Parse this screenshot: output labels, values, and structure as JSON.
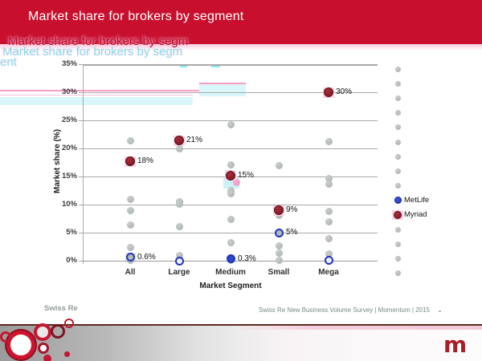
{
  "slide": {
    "title": "Market share for brokers by segment",
    "ghost_title_line": "Market share for brokers by segm",
    "ghost_title_wrap": "ent"
  },
  "footer": {
    "left": "Swiss Re",
    "right": "Swiss Re New Business Volume Survey |  Momentum |  2015",
    "logo": "m"
  },
  "colors": {
    "header_red": "#c8102e",
    "metlife_blue": "#2134bd",
    "myriad_red": "#8a1c29",
    "gray_dot": "#b0b6b5",
    "artifact_pink": "#fa9cc5",
    "artifact_cyan": "#d9f6fa",
    "momentum_red": "#a81e2c",
    "gridline_gray": "#a9a9a9"
  },
  "chart_data": {
    "type": "scatter",
    "title": "",
    "xlabel": "Market Segment",
    "ylabel": "Market share (%)",
    "categories": [
      "All",
      "Large",
      "Medium",
      "Small",
      "Mega"
    ],
    "y_ticks": [
      "0%",
      "5%",
      "10%",
      "15%",
      "20%",
      "25%",
      "30%",
      "35%"
    ],
    "ylim": [
      0,
      35
    ],
    "grid": true,
    "legend_position": "right",
    "series": [
      {
        "name": "MetLife",
        "color": "#2134bd",
        "values": [
          0.6,
          0.0,
          0.3,
          5.0,
          0.1
        ],
        "labels": [
          "0.6%",
          "",
          "0.3%",
          "5%",
          ""
        ],
        "marker_fill": [
          "gray",
          "hollow",
          "solid",
          "gray",
          "hollow"
        ]
      },
      {
        "name": "Myriad",
        "color": "#8a1c29",
        "values": [
          17.7,
          21.4,
          15.2,
          9.0,
          30.0
        ],
        "labels": [
          "18%",
          "21%",
          "15%",
          "9%",
          "30%"
        ]
      }
    ],
    "background_points": {
      "note": "unlabeled gray broker dots",
      "All": [
        21.4,
        10.9,
        8.9,
        6.4,
        2.4,
        0.1
      ],
      "Large": [
        19.9,
        10.5,
        10.1,
        6.1,
        1.0
      ],
      "Medium": [
        24.2,
        17.1,
        12.5,
        12.0,
        7.3,
        3.2,
        0.1
      ],
      "Small": [
        16.9,
        8.6,
        8.1,
        2.7,
        1.4,
        0.1
      ],
      "Mega": [
        21.2,
        14.7,
        13.7,
        8.8,
        7.0,
        3.9,
        1.2
      ]
    },
    "legend": {
      "gray_dots_above": 9,
      "entries": [
        "MetLife",
        "Myriad"
      ],
      "gray_dots_below": 4
    }
  }
}
